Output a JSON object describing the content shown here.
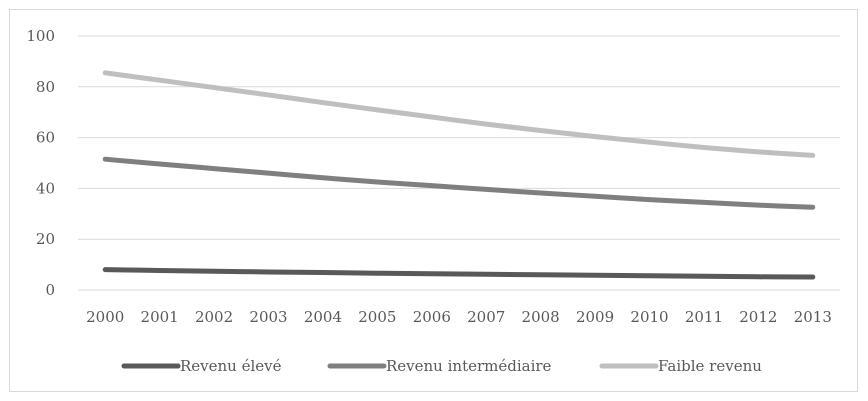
{
  "chart_data": {
    "type": "line",
    "title": "",
    "xlabel": "",
    "ylabel": "",
    "x": [
      "2000",
      "2001",
      "2002",
      "2003",
      "2004",
      "2005",
      "2006",
      "2007",
      "2008",
      "2009",
      "2010",
      "2011",
      "2012",
      "2013"
    ],
    "yticks": [
      "0",
      "20",
      "40",
      "60",
      "80",
      "100"
    ],
    "ylim": [
      0,
      100
    ],
    "grid": true,
    "legend_position": "bottom",
    "series": [
      {
        "name": "Revenu élevé",
        "color": "#595959",
        "values": [
          8.0,
          7.7,
          7.4,
          7.1,
          6.9,
          6.6,
          6.4,
          6.2,
          6.0,
          5.8,
          5.6,
          5.4,
          5.2,
          5.1
        ]
      },
      {
        "name": "Revenu intermédiaire",
        "color": "#7f7f7f",
        "values": [
          51.5,
          49.6,
          47.8,
          46.0,
          44.2,
          42.5,
          41.1,
          39.6,
          38.2,
          36.9,
          35.6,
          34.5,
          33.4,
          32.6
        ]
      },
      {
        "name": "Faible revenu",
        "color": "#bfbfbf",
        "values": [
          85.5,
          82.6,
          79.7,
          76.8,
          73.8,
          70.9,
          68.1,
          65.3,
          62.8,
          60.4,
          58.2,
          56.1,
          54.4,
          53.0
        ]
      }
    ]
  }
}
